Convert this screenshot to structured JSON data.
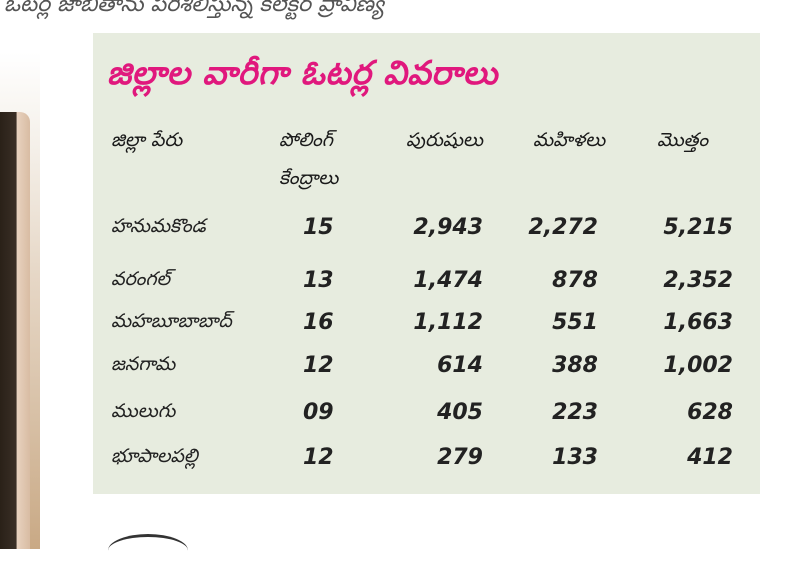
{
  "caption": "ఓటర్ల జాబితాను పరిశీలిస్తున్న కలెక్టర్ ప్రావీణ్య",
  "table": {
    "title": "జిల్లాల వారీగా ఓటర్ల వివరాలు",
    "headers": {
      "district": "జిల్లా పేరు",
      "polling_line1": "పోలింగ్",
      "polling_line2": "కేంద్రాలు",
      "men": "పురుషులు",
      "women": "మహిళలు",
      "total": "మొత్తం"
    },
    "rows": [
      {
        "district": "హనుమకొండ",
        "polling": "15",
        "men": "2,943",
        "women": "2,272",
        "total": "5,215"
      },
      {
        "district": "వరంగల్",
        "polling": "13",
        "men": "1,474",
        "women": "878",
        "total": "2,352"
      },
      {
        "district": "మహబూబాబాద్",
        "polling": "16",
        "men": "1,112",
        "women": "551",
        "total": "1,663"
      },
      {
        "district": "జనగామ",
        "polling": "12",
        "men": "614",
        "women": "388",
        "total": "1,002"
      },
      {
        "district": "ములుగు",
        "polling": "09",
        "men": "405",
        "women": "223",
        "total": "628"
      },
      {
        "district": "భూపాలపల్లి",
        "polling": "12",
        "men": "279",
        "women": "133",
        "total": "412"
      }
    ]
  }
}
